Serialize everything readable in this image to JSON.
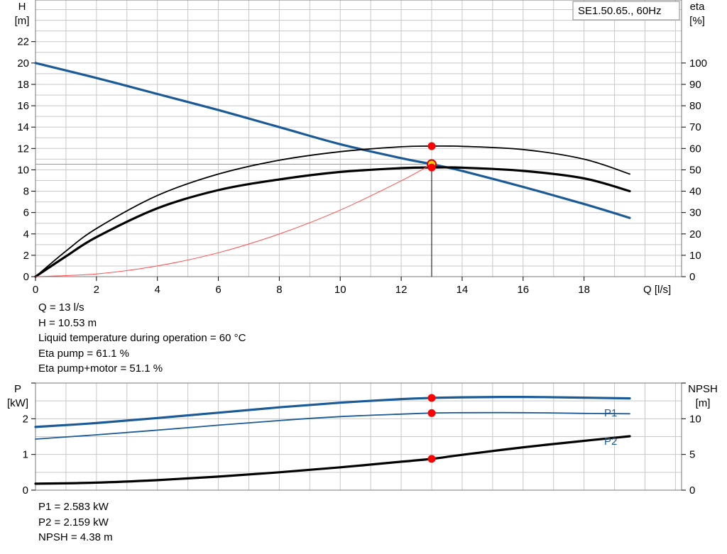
{
  "colors": {
    "head_curve": "#1a5a96",
    "power_curve": "#1a5a96",
    "npsh_curve": "#000000",
    "efficiency_curve": "#000000",
    "system_curve": "#ff4d4d",
    "operating_point": "#ff0000",
    "operating_point_fill": "#f2d100",
    "grid": "#c8c8c8"
  },
  "top_chart": {
    "legend_box": "SE1.50.65., 60Hz",
    "y_left_label": [
      "H",
      "[m]"
    ],
    "y_right_label": [
      "eta",
      "[%]"
    ],
    "x_label": "Q [l/s]",
    "y_left_ticks": [
      "0",
      "2",
      "4",
      "6",
      "8",
      "10",
      "12",
      "14",
      "16",
      "18",
      "20",
      "22"
    ],
    "y_right_ticks": [
      "0",
      "10",
      "20",
      "30",
      "40",
      "50",
      "60",
      "70",
      "80",
      "90",
      "100"
    ],
    "x_ticks": [
      "0",
      "2",
      "4",
      "6",
      "8",
      "10",
      "12",
      "14",
      "16",
      "18"
    ]
  },
  "bottom_chart": {
    "y_left_label": [
      "P",
      "[kW]"
    ],
    "y_right_label": [
      "NPSH",
      "[m]"
    ],
    "y_left_ticks": [
      "0",
      "1",
      "2"
    ],
    "y_right_ticks": [
      "0",
      "5",
      "10"
    ],
    "series_labels": {
      "p1": "P1",
      "p2": "P2"
    }
  },
  "operating_info": {
    "q": "Q = 13 l/s",
    "h": "H = 10.53 m",
    "temp": "Liquid temperature during operation = 60 °C",
    "eta_pump": "Eta pump = 61.1 %",
    "eta_total": "Eta pump+motor = 51.1 %"
  },
  "power_info": {
    "p1": "P1 = 2.583 kW",
    "p2": "P2 = 2.159 kW",
    "npsh": "NPSH = 4.38 m"
  },
  "chart_data": [
    {
      "type": "line",
      "title": "SE1.50.65., 60Hz",
      "xlabel": "Q [l/s]",
      "ylabel": "H [m]",
      "y2label": "eta [%]",
      "xlim": [
        0,
        21.2
      ],
      "ylim": [
        0,
        25.9
      ],
      "y2lim": [
        0,
        129.5
      ],
      "grid": true,
      "series": [
        {
          "name": "H",
          "axis": "left",
          "x": [
            0,
            2,
            4,
            6,
            8,
            10,
            12,
            13,
            14,
            16,
            18,
            19.5
          ],
          "y": [
            20.0,
            18.6,
            17.1,
            15.6,
            14.0,
            12.4,
            11.1,
            10.53,
            9.9,
            8.4,
            6.8,
            5.5
          ]
        },
        {
          "name": "Eta pump",
          "axis": "right",
          "x": [
            0,
            1,
            2,
            4,
            6,
            8,
            10,
            12,
            13,
            14,
            16,
            18,
            19.5
          ],
          "y": [
            0,
            12,
            22.5,
            38,
            48,
            54.5,
            58.5,
            60.8,
            61.1,
            61,
            59.5,
            55,
            48
          ]
        },
        {
          "name": "Eta pump+motor",
          "axis": "right",
          "x": [
            0,
            1,
            2,
            4,
            6,
            8,
            10,
            12,
            13,
            14,
            16,
            18,
            19.5
          ],
          "y": [
            0,
            9.5,
            18.5,
            32,
            40.5,
            45.5,
            49,
            50.8,
            51.1,
            51,
            49.5,
            46,
            40
          ]
        },
        {
          "name": "System curve",
          "axis": "left",
          "x": [
            0,
            2,
            4,
            6,
            8,
            10,
            12,
            13
          ],
          "y": [
            0,
            0.25,
            1.0,
            2.24,
            3.99,
            6.23,
            8.97,
            10.53
          ]
        }
      ],
      "operating_point": {
        "q": 13,
        "h": 10.53,
        "eta_pump": 61.1,
        "eta_total": 51.1
      }
    },
    {
      "type": "line",
      "xlabel": "Q [l/s]",
      "ylabel": "P [kW]",
      "y2label": "NPSH [m]",
      "xlim": [
        0,
        21.2
      ],
      "ylim": [
        0,
        3.0
      ],
      "y2lim": [
        0,
        15
      ],
      "grid": true,
      "series": [
        {
          "name": "P1",
          "axis": "left",
          "x": [
            0,
            2,
            4,
            6,
            8,
            10,
            12,
            13,
            14,
            16,
            18,
            19.5
          ],
          "y": [
            1.77,
            1.88,
            2.02,
            2.17,
            2.32,
            2.45,
            2.55,
            2.583,
            2.6,
            2.61,
            2.59,
            2.57
          ]
        },
        {
          "name": "P2",
          "axis": "left",
          "x": [
            0,
            2,
            4,
            6,
            8,
            10,
            12,
            13,
            14,
            16,
            18,
            19.5
          ],
          "y": [
            1.43,
            1.55,
            1.68,
            1.82,
            1.95,
            2.06,
            2.13,
            2.159,
            2.17,
            2.17,
            2.15,
            2.14
          ]
        },
        {
          "name": "NPSH",
          "axis": "right",
          "x": [
            0,
            2,
            4,
            6,
            8,
            10,
            12,
            13,
            14,
            16,
            18,
            19.5
          ],
          "y": [
            0.9,
            1.05,
            1.4,
            1.9,
            2.5,
            3.2,
            3.98,
            4.38,
            4.95,
            6.0,
            6.9,
            7.55
          ]
        }
      ],
      "operating_point": {
        "q": 13,
        "p1": 2.583,
        "p2": 2.159,
        "npsh": 4.38
      }
    }
  ]
}
